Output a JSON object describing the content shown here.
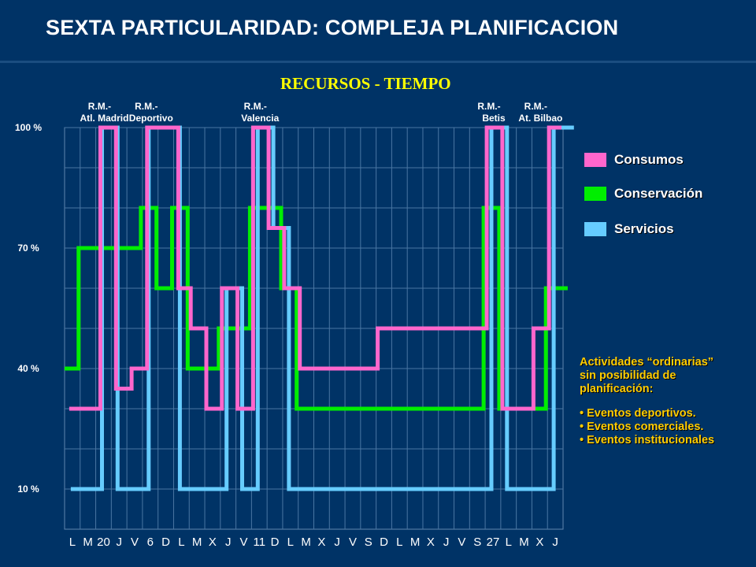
{
  "title": "SEXTA PARTICULARIDAD: COMPLEJA PLANIFICACION",
  "chart_data": {
    "type": "line",
    "subtitle": "RECURSOS - TIEMPO",
    "y_tick_labels": [
      "100 %",
      "70 %",
      "40 %",
      "10 %"
    ],
    "y_ticks": [
      100,
      70,
      40,
      10
    ],
    "ylim": [
      0,
      100
    ],
    "grid": true,
    "categories": [
      "L",
      "M",
      "20",
      "J",
      "V",
      "6",
      "D",
      "L",
      "M",
      "X",
      "J",
      "V",
      "11",
      "D",
      "L",
      "M",
      "X",
      "J",
      "V",
      "S",
      "D",
      "L",
      "M",
      "X",
      "J",
      "V",
      "S",
      "27",
      "L",
      "M",
      "X",
      "J"
    ],
    "annotations": [
      {
        "line1": "R.M.-",
        "line2": "Atl. Madrid",
        "index": 2
      },
      {
        "line1": "R.M.-",
        "line2": "Deportivo",
        "index": 5
      },
      {
        "line1": "R.M.-",
        "line2": "Valencia",
        "index": 12
      },
      {
        "line1": "R.M.-",
        "line2": "Betis",
        "index": 27
      },
      {
        "line1": "R.M.-",
        "line2": "At. Bilbao",
        "index": 30
      }
    ],
    "series": [
      {
        "name": "Consumos",
        "color": "#ff66cc",
        "points": [
          [
            -0.2,
            30
          ],
          [
            1.8,
            30
          ],
          [
            1.8,
            100
          ],
          [
            2.8,
            100
          ],
          [
            2.8,
            35
          ],
          [
            3.8,
            35
          ],
          [
            3.8,
            40
          ],
          [
            4.8,
            40
          ],
          [
            4.8,
            100
          ],
          [
            6.8,
            100
          ],
          [
            6.8,
            60
          ],
          [
            7.6,
            60
          ],
          [
            7.6,
            50
          ],
          [
            8.6,
            50
          ],
          [
            8.6,
            30
          ],
          [
            9.6,
            30
          ],
          [
            9.6,
            60
          ],
          [
            10.6,
            60
          ],
          [
            10.6,
            30
          ],
          [
            11.6,
            30
          ],
          [
            11.6,
            100
          ],
          [
            12.6,
            100
          ],
          [
            12.6,
            75
          ],
          [
            13.6,
            75
          ],
          [
            13.6,
            60
          ],
          [
            14.6,
            60
          ],
          [
            14.6,
            40
          ],
          [
            19.6,
            40
          ],
          [
            19.6,
            50
          ],
          [
            26.6,
            50
          ],
          [
            26.6,
            100
          ],
          [
            27.6,
            100
          ],
          [
            27.6,
            30
          ],
          [
            29.6,
            30
          ],
          [
            29.6,
            50
          ],
          [
            30.6,
            50
          ],
          [
            30.6,
            100
          ],
          [
            31.4,
            100
          ]
        ]
      },
      {
        "name": "Conservación",
        "color": "#00ee00",
        "points": [
          [
            -0.5,
            40
          ],
          [
            0.4,
            40
          ],
          [
            0.4,
            70
          ],
          [
            4.4,
            70
          ],
          [
            4.4,
            80
          ],
          [
            5.4,
            80
          ],
          [
            5.4,
            60
          ],
          [
            6.4,
            60
          ],
          [
            6.4,
            80
          ],
          [
            7.4,
            80
          ],
          [
            7.4,
            40
          ],
          [
            9.4,
            40
          ],
          [
            9.4,
            50
          ],
          [
            11.4,
            50
          ],
          [
            11.4,
            80
          ],
          [
            13.4,
            80
          ],
          [
            13.4,
            60
          ],
          [
            14.4,
            60
          ],
          [
            14.4,
            30
          ],
          [
            26.4,
            30
          ],
          [
            26.4,
            80
          ],
          [
            27.4,
            80
          ],
          [
            27.4,
            30
          ],
          [
            30.4,
            30
          ],
          [
            30.4,
            60
          ],
          [
            31.8,
            60
          ]
        ]
      },
      {
        "name": "Servicios",
        "color": "#66ccff",
        "points": [
          [
            -0.1,
            10
          ],
          [
            1.9,
            10
          ],
          [
            1.9,
            100
          ],
          [
            2.9,
            100
          ],
          [
            2.9,
            10
          ],
          [
            4.9,
            10
          ],
          [
            4.9,
            100
          ],
          [
            6.9,
            100
          ],
          [
            6.9,
            10
          ],
          [
            9.9,
            10
          ],
          [
            9.9,
            60
          ],
          [
            10.9,
            60
          ],
          [
            10.9,
            10
          ],
          [
            11.9,
            10
          ],
          [
            11.9,
            100
          ],
          [
            12.9,
            100
          ],
          [
            12.9,
            75
          ],
          [
            13.9,
            75
          ],
          [
            13.9,
            10
          ],
          [
            26.9,
            10
          ],
          [
            26.9,
            100
          ],
          [
            27.9,
            100
          ],
          [
            27.9,
            10
          ],
          [
            30.9,
            10
          ],
          [
            30.9,
            100
          ],
          [
            32.2,
            100
          ]
        ]
      }
    ]
  },
  "legend": [
    {
      "label": "Consumos",
      "color": "#ff66cc"
    },
    {
      "label": "Conservación",
      "color": "#00ee00"
    },
    {
      "label": "Servicios",
      "color": "#66ccff"
    }
  ],
  "note": {
    "heading_line1": "Actividades “ordinarias”",
    "heading_line2": "sin posibilidad de",
    "heading_line3": "planificación:",
    "items": [
      "Eventos deportivos.",
      "Eventos comerciales.",
      "Eventos institucionales"
    ]
  }
}
